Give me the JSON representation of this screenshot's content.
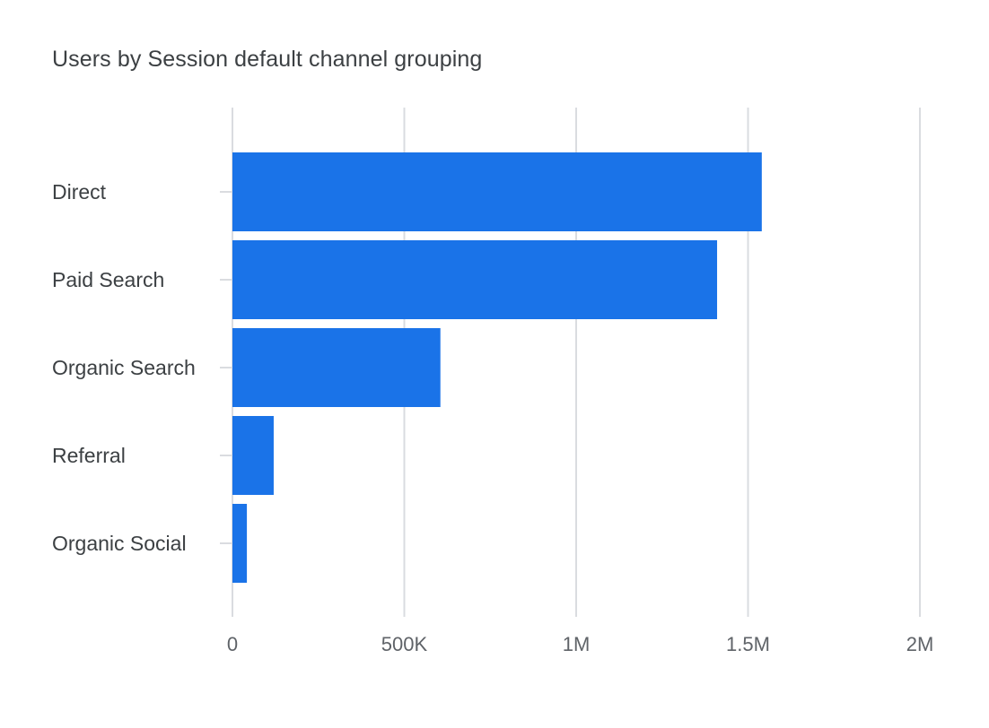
{
  "chart_data": {
    "type": "bar",
    "orientation": "horizontal",
    "title": "Users by Session default channel grouping",
    "categories": [
      "Direct",
      "Paid Search",
      "Organic Search",
      "Referral",
      "Organic Social"
    ],
    "series": [
      {
        "values": [
          1540000,
          1410000,
          605000,
          120000,
          42000
        ]
      }
    ],
    "xlabel": "",
    "ylabel": "",
    "xlim": [
      0,
      2000000
    ],
    "xticks": [
      0,
      500000,
      1000000,
      1500000,
      2000000
    ],
    "xtick_labels": [
      "0",
      "500K",
      "1M",
      "1.5M",
      "2M"
    ],
    "grid": true,
    "legend": "none",
    "colors": {
      "bar": "#1a73e8",
      "grid": "#dadce0",
      "text": "#3c4043",
      "tick_text": "#5f6368"
    }
  }
}
